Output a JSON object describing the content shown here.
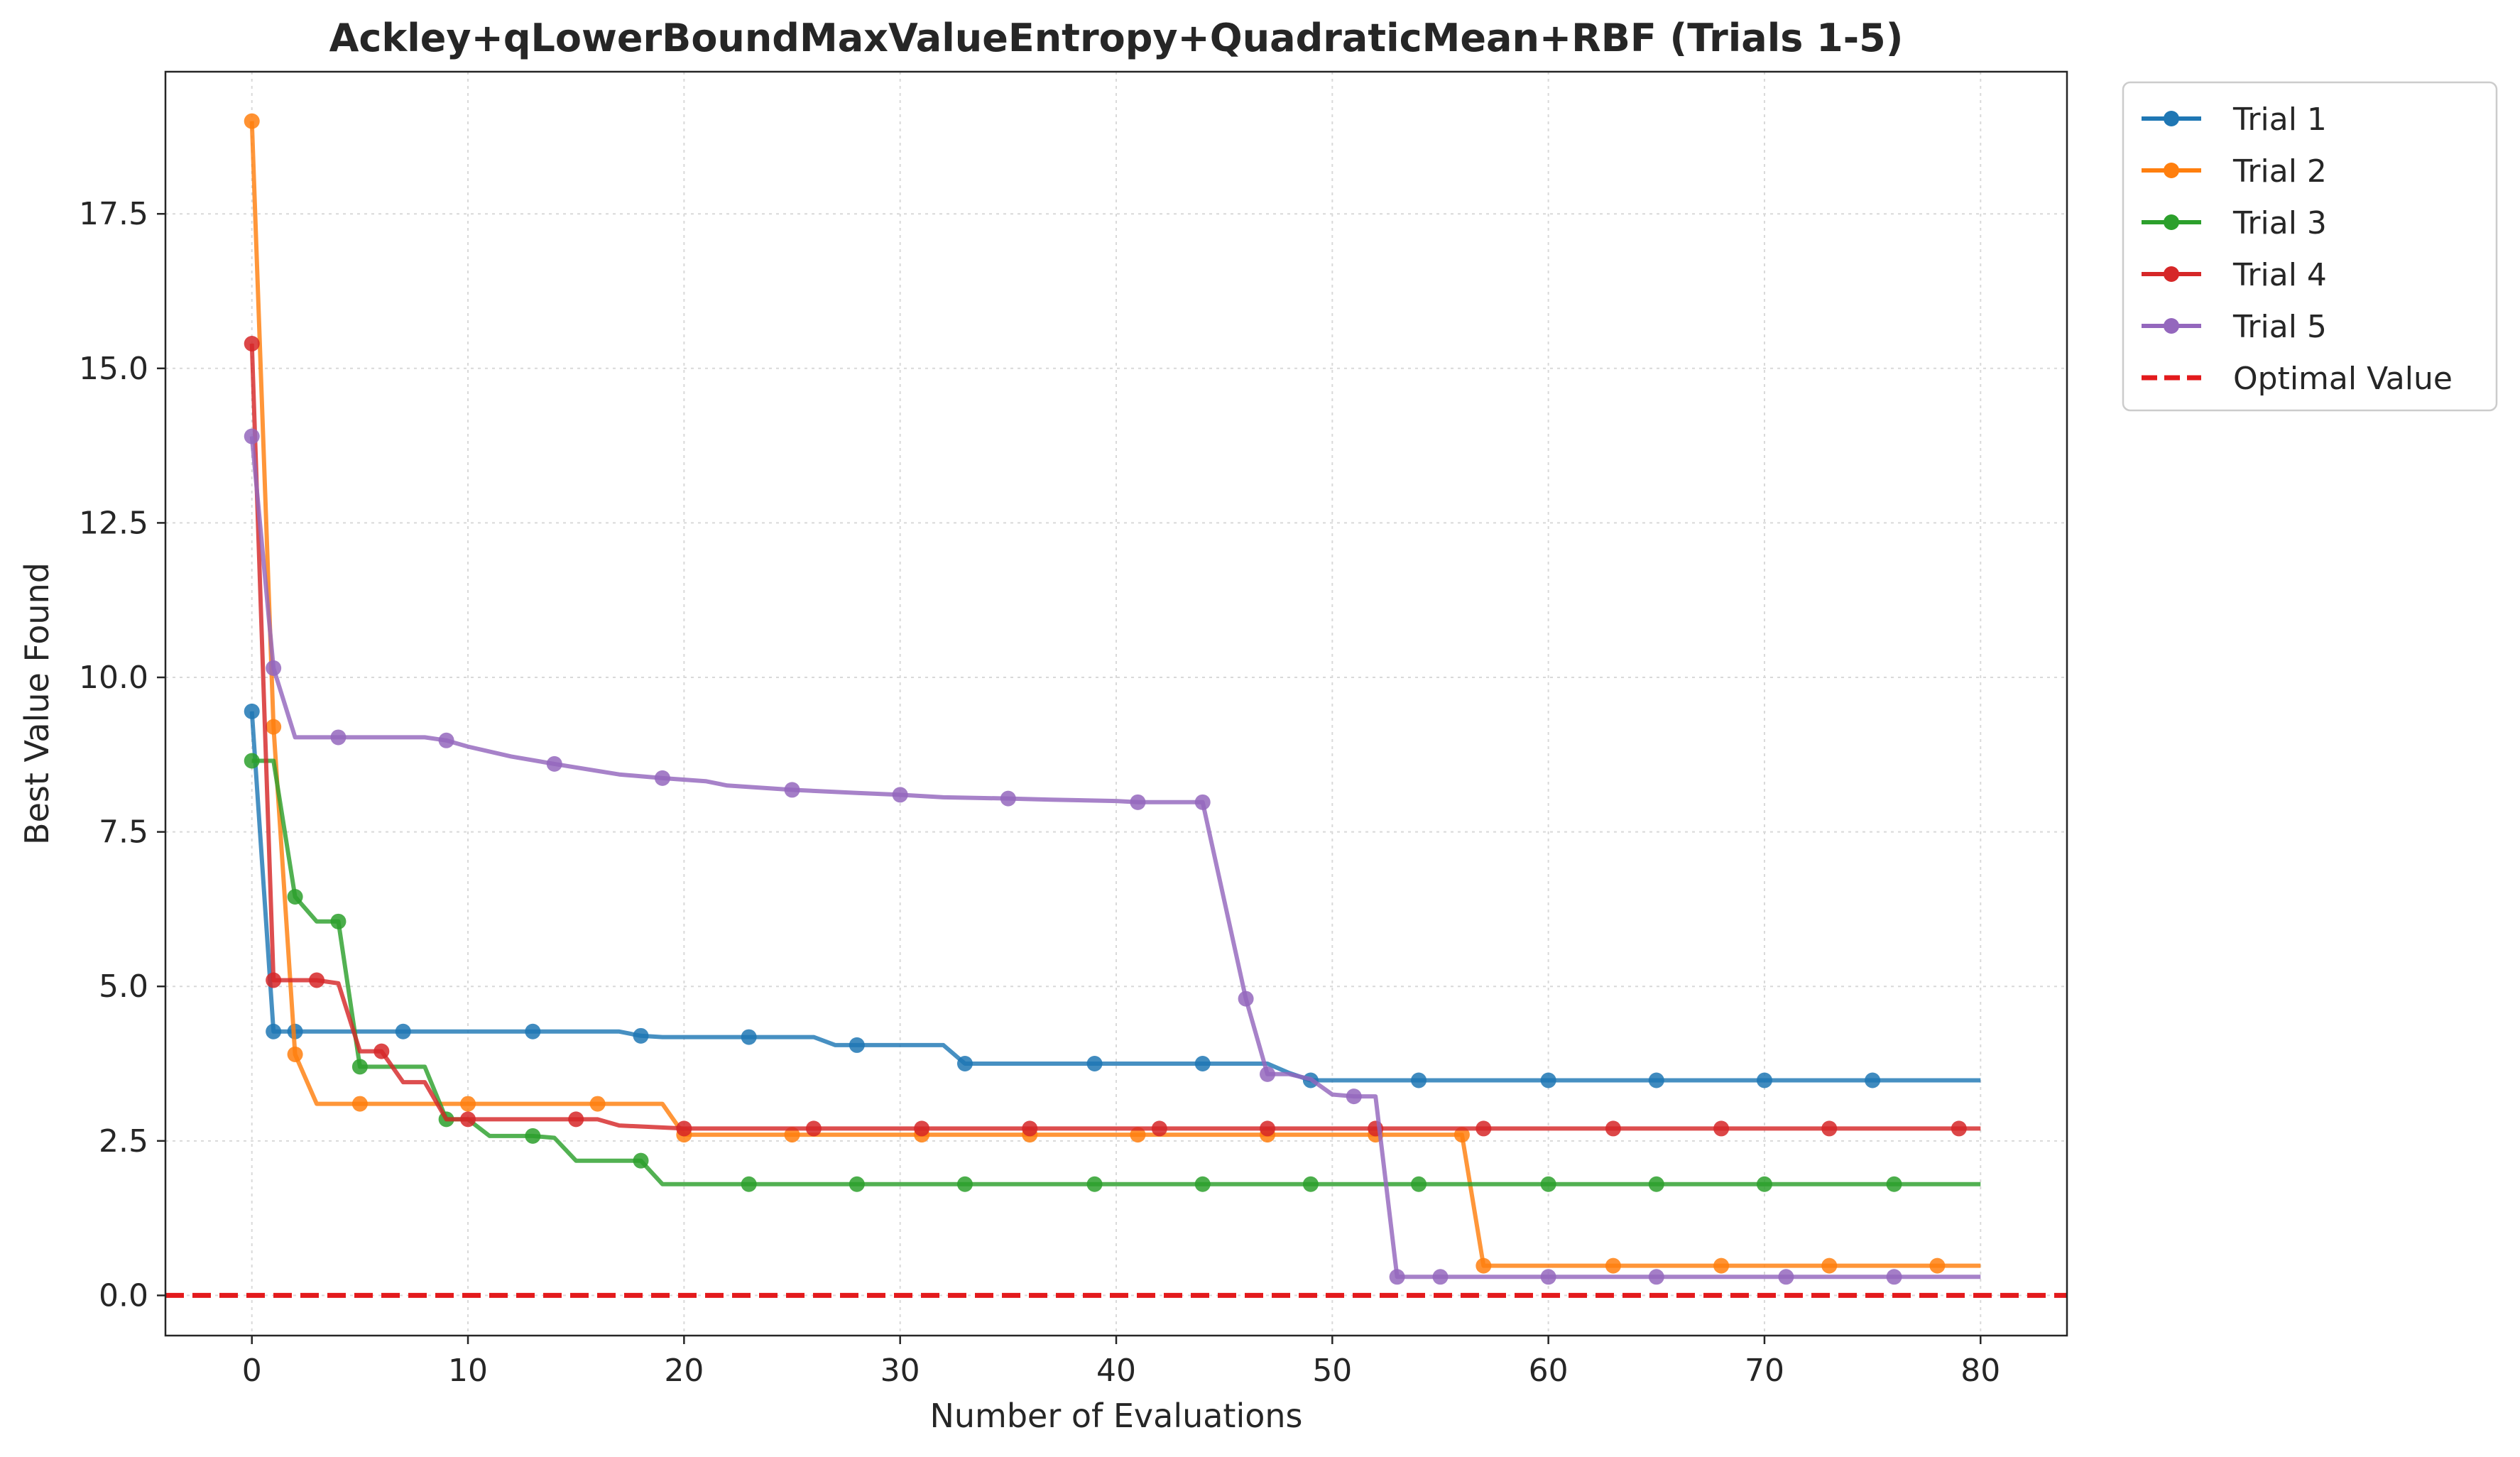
{
  "chart_data": {
    "type": "line",
    "title": "Ackley+qLowerBoundMaxValueEntropy+QuadraticMean+RBF (Trials 1-5)",
    "xlabel": "Number of Evaluations",
    "ylabel": "Best Value Found",
    "xlim": [
      -4,
      84
    ],
    "ylim": [
      -0.65,
      19.8
    ],
    "x_ticks": [
      0,
      10,
      20,
      30,
      40,
      50,
      60,
      70,
      80
    ],
    "y_ticks": [
      0.0,
      2.5,
      5.0,
      7.5,
      10.0,
      12.5,
      15.0,
      17.5
    ],
    "x_tick_labels": [
      "0",
      "10",
      "20",
      "30",
      "40",
      "50",
      "60",
      "70",
      "80"
    ],
    "y_tick_labels": [
      "0.0",
      "2.5",
      "5.0",
      "7.5",
      "10.0",
      "12.5",
      "15.0",
      "17.5"
    ],
    "grid": true,
    "legend_position": "outside-top-right",
    "optimal_value": 0.0,
    "optimal_label": "Optimal Value",
    "optimal_color": "#e31a1c",
    "series": [
      {
        "name": "Trial 1",
        "color": "#1f77b4",
        "x": [
          0,
          1,
          2,
          7,
          8,
          13,
          17,
          18,
          19,
          23,
          26,
          27,
          28,
          32,
          33,
          39,
          44,
          47,
          48,
          49,
          54,
          60,
          65,
          70,
          75,
          80
        ],
        "y": [
          9.45,
          4.27,
          4.27,
          4.27,
          4.27,
          4.27,
          4.27,
          4.2,
          4.18,
          4.18,
          4.18,
          4.05,
          4.05,
          4.05,
          3.75,
          3.75,
          3.75,
          3.75,
          3.6,
          3.48,
          3.48,
          3.48,
          3.48,
          3.48,
          3.48,
          3.48
        ],
        "markers": [
          0,
          1,
          2,
          7,
          13,
          18,
          23,
          28,
          33,
          39,
          44,
          49,
          54,
          60,
          65,
          70,
          75
        ]
      },
      {
        "name": "Trial 2",
        "color": "#ff7f0e",
        "x": [
          0,
          1,
          2,
          3,
          5,
          10,
          16,
          19,
          20,
          25,
          31,
          36,
          41,
          47,
          52,
          56,
          57,
          63,
          68,
          73,
          78,
          80
        ],
        "y": [
          19.0,
          9.2,
          3.9,
          3.1,
          3.1,
          3.1,
          3.1,
          3.1,
          2.6,
          2.6,
          2.6,
          2.6,
          2.6,
          2.6,
          2.6,
          2.6,
          0.48,
          0.48,
          0.48,
          0.48,
          0.48,
          0.48
        ],
        "markers": [
          0,
          1,
          2,
          5,
          10,
          16,
          20,
          25,
          31,
          36,
          41,
          47,
          52,
          56,
          57,
          63,
          68,
          73,
          78
        ]
      },
      {
        "name": "Trial 3",
        "color": "#2ca02c",
        "x": [
          0,
          1,
          2,
          3,
          4,
          5,
          8,
          9,
          10,
          11,
          13,
          14,
          15,
          18,
          19,
          23,
          28,
          33,
          39,
          44,
          49,
          54,
          60,
          65,
          70,
          76,
          80
        ],
        "y": [
          8.65,
          8.65,
          6.45,
          6.05,
          6.05,
          3.7,
          3.7,
          2.85,
          2.85,
          2.58,
          2.58,
          2.55,
          2.18,
          2.18,
          1.8,
          1.8,
          1.8,
          1.8,
          1.8,
          1.8,
          1.8,
          1.8,
          1.8,
          1.8,
          1.8,
          1.8,
          1.8
        ],
        "markers": [
          0,
          2,
          4,
          5,
          9,
          13,
          18,
          23,
          28,
          33,
          39,
          44,
          49,
          54,
          60,
          65,
          70,
          76
        ]
      },
      {
        "name": "Trial 4",
        "color": "#d62728",
        "x": [
          0,
          1,
          3,
          4,
          5,
          6,
          7,
          8,
          9,
          10,
          15,
          16,
          17,
          20,
          26,
          31,
          36,
          42,
          47,
          52,
          57,
          63,
          68,
          73,
          79,
          80
        ],
        "y": [
          15.4,
          5.1,
          5.1,
          5.05,
          3.95,
          3.95,
          3.45,
          3.45,
          2.85,
          2.85,
          2.85,
          2.85,
          2.75,
          2.7,
          2.7,
          2.7,
          2.7,
          2.7,
          2.7,
          2.7,
          2.7,
          2.7,
          2.7,
          2.7,
          2.7,
          2.7
        ],
        "markers": [
          0,
          1,
          3,
          6,
          10,
          15,
          20,
          26,
          31,
          36,
          42,
          47,
          52,
          57,
          63,
          68,
          73,
          79
        ]
      },
      {
        "name": "Trial 5",
        "color": "#9467bd",
        "x": [
          0,
          1,
          2,
          4,
          8,
          9,
          10,
          12,
          14,
          17,
          19,
          21,
          22,
          25,
          28,
          30,
          32,
          35,
          37,
          40,
          41,
          44,
          46,
          47,
          48,
          49,
          50,
          51,
          52,
          53,
          55,
          60,
          65,
          71,
          76,
          80
        ],
        "y": [
          13.9,
          10.15,
          9.03,
          9.03,
          9.03,
          8.98,
          8.88,
          8.72,
          8.6,
          8.43,
          8.37,
          8.32,
          8.25,
          8.18,
          8.13,
          8.1,
          8.06,
          8.04,
          8.02,
          8.0,
          7.98,
          7.98,
          4.8,
          3.58,
          3.58,
          3.5,
          3.25,
          3.22,
          3.22,
          0.3,
          0.3,
          0.3,
          0.3,
          0.3,
          0.3,
          0.3
        ],
        "markers": [
          0,
          1,
          4,
          9,
          14,
          19,
          25,
          30,
          35,
          41,
          44,
          46,
          47,
          51,
          53,
          55,
          60,
          65,
          71,
          76
        ]
      }
    ]
  }
}
